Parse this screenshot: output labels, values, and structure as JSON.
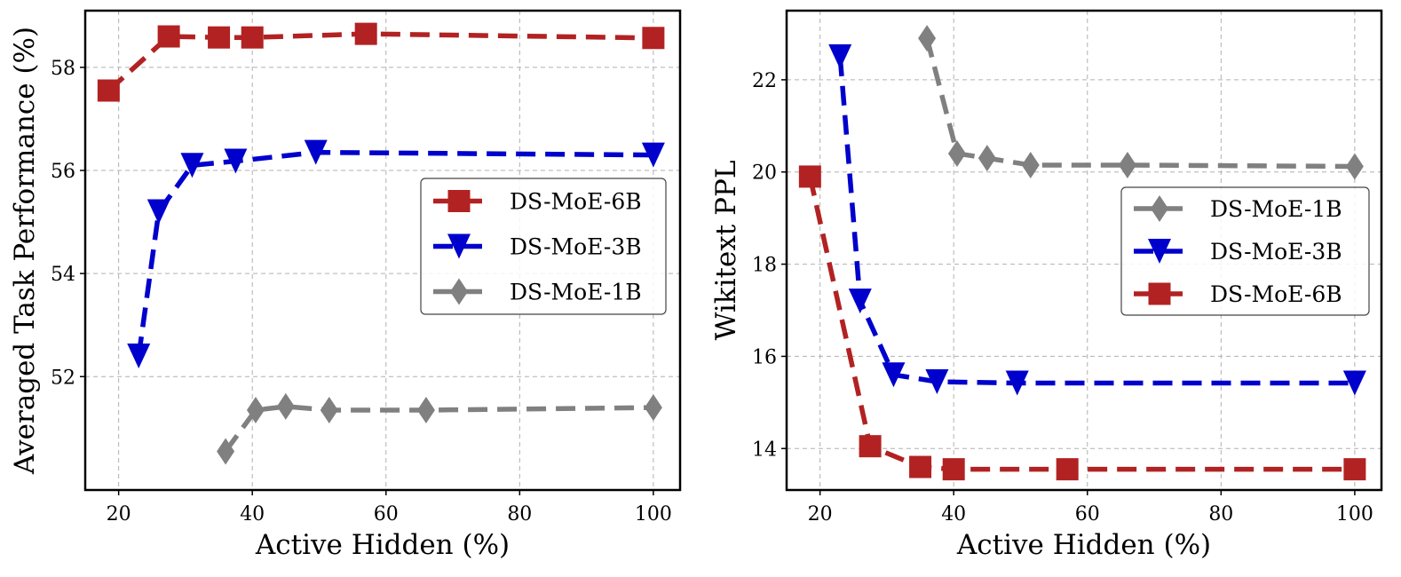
{
  "chart_data": [
    {
      "type": "line",
      "title": "",
      "xlabel": "Active Hidden (%)",
      "ylabel": "Averaged Task Performance (%)",
      "xlim": [
        15,
        104
      ],
      "ylim": [
        49.8,
        59.1
      ],
      "xticks": [
        "20",
        "40",
        "60",
        "80",
        "100"
      ],
      "yticks": [
        "52",
        "54",
        "56",
        "58"
      ],
      "grid": true,
      "legend_position": "center-right",
      "legend_order": [
        "DS-MoE-6B",
        "DS-MoE-3B",
        "DS-MoE-1B"
      ],
      "series": [
        {
          "name": "DS-MoE-6B",
          "color": "#b22222",
          "marker": "square",
          "x": [
            18.5,
            27.5,
            35,
            40,
            57,
            100
          ],
          "y": [
            57.55,
            58.6,
            58.58,
            58.58,
            58.65,
            58.57
          ]
        },
        {
          "name": "DS-MoE-3B",
          "color": "#0000cc",
          "marker": "triangle-down",
          "x": [
            23,
            26,
            31,
            37.5,
            49.5,
            100
          ],
          "y": [
            52.4,
            55.2,
            56.1,
            56.18,
            56.35,
            56.3
          ]
        },
        {
          "name": "DS-MoE-1B",
          "color": "#808080",
          "marker": "diamond",
          "x": [
            36,
            40.5,
            45,
            51.5,
            66,
            100
          ],
          "y": [
            50.55,
            51.35,
            51.42,
            51.35,
            51.35,
            51.4
          ]
        }
      ]
    },
    {
      "type": "line",
      "title": "",
      "xlabel": "Active Hidden (%)",
      "ylabel": "Wikitext PPL",
      "xlim": [
        15,
        104
      ],
      "ylim": [
        13.1,
        23.5
      ],
      "xticks": [
        "20",
        "40",
        "60",
        "80",
        "100"
      ],
      "yticks": [
        "14",
        "16",
        "18",
        "20",
        "22"
      ],
      "grid": true,
      "legend_position": "center-right",
      "legend_order": [
        "DS-MoE-1B",
        "DS-MoE-3B",
        "DS-MoE-6B"
      ],
      "series": [
        {
          "name": "DS-MoE-1B",
          "color": "#808080",
          "marker": "diamond",
          "x": [
            36,
            40.5,
            45,
            51.5,
            66,
            100
          ],
          "y": [
            22.9,
            20.4,
            20.3,
            20.15,
            20.15,
            20.12
          ]
        },
        {
          "name": "DS-MoE-3B",
          "color": "#0000cc",
          "marker": "triangle-down",
          "x": [
            23,
            26,
            31,
            37.5,
            49.5,
            100
          ],
          "y": [
            22.5,
            17.2,
            15.6,
            15.45,
            15.42,
            15.42
          ]
        },
        {
          "name": "DS-MoE-6B",
          "color": "#b22222",
          "marker": "square",
          "x": [
            18.5,
            27.5,
            35,
            40,
            57,
            100
          ],
          "y": [
            19.9,
            14.05,
            13.6,
            13.55,
            13.55,
            13.55
          ]
        }
      ]
    }
  ]
}
